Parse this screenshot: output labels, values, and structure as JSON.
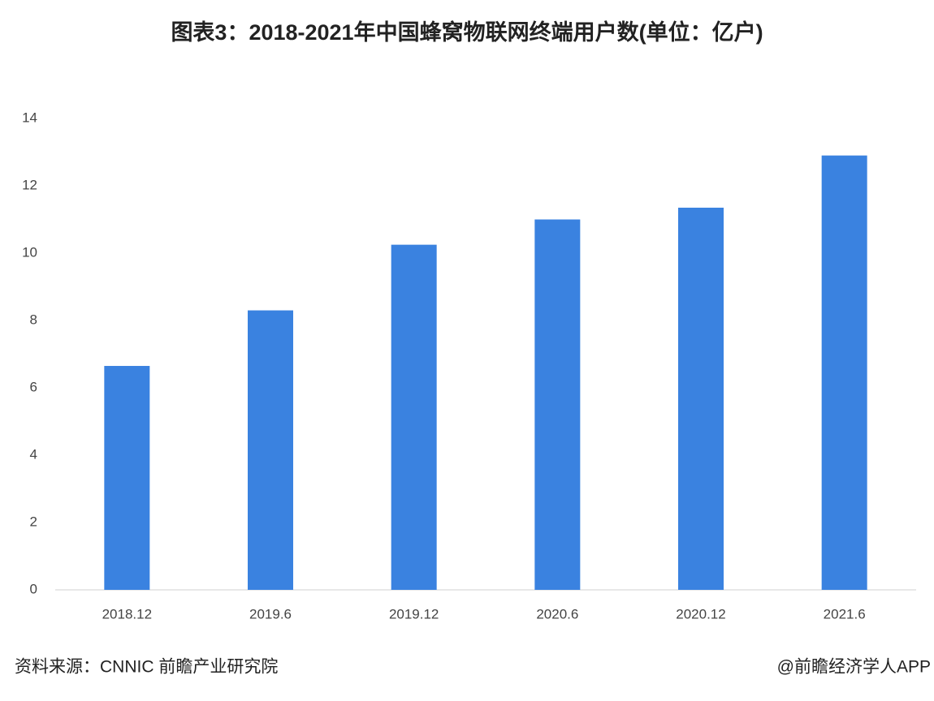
{
  "chart_data": {
    "type": "bar",
    "title": "图表3：2018-2021年中国蜂窝物联网终端用户数(单位：亿户)",
    "categories": [
      "2018.12",
      "2019.6",
      "2019.12",
      "2020.6",
      "2020.12",
      "2021.6"
    ],
    "values": [
      6.65,
      8.3,
      10.25,
      11.0,
      11.35,
      12.9
    ],
    "color": "#3a82e0",
    "ylim": [
      0,
      14
    ],
    "yticks": [
      0,
      2,
      4,
      6,
      8,
      10,
      12,
      14
    ],
    "grid": false,
    "source": "资料来源：CNNIC 前瞻产业研究院",
    "credit": "@前瞻经济学人APP"
  }
}
